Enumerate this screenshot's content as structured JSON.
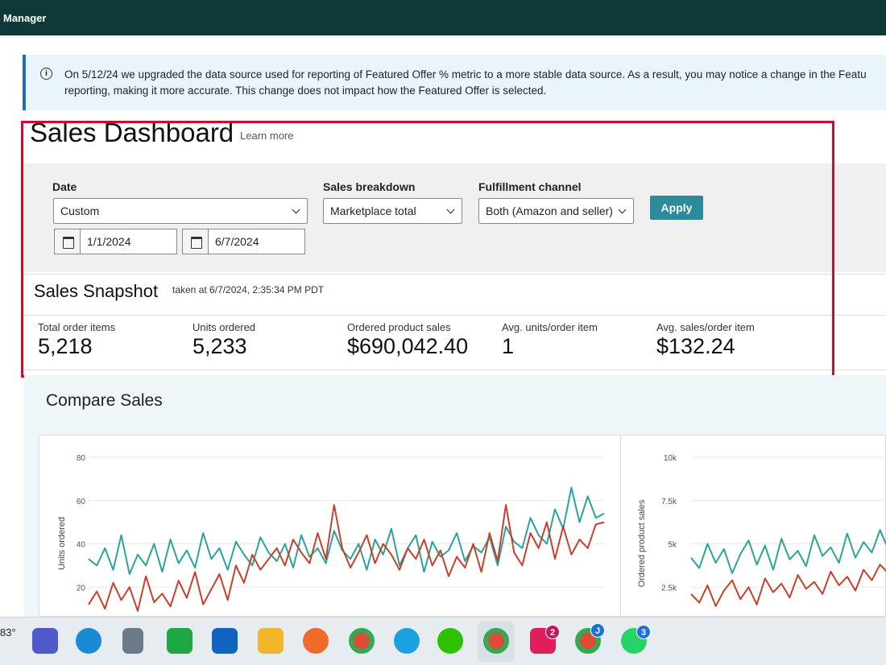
{
  "top_bar": {
    "title": "Manager"
  },
  "notice": {
    "line1": "On 5/12/24 we upgraded the data source used for reporting of Featured Offer % metric to a more stable data source. As a result, you may notice a change in the Featu",
    "line2": "reporting, making it more accurate. This change does not impact how the Featured Offer is selected."
  },
  "dashboard": {
    "title": "Sales Dashboard",
    "learn_more": "Learn more"
  },
  "filters": {
    "date": {
      "label": "Date",
      "value": "Custom",
      "start": "1/1/2024",
      "end": "6/7/2024"
    },
    "sales_breakdown": {
      "label": "Sales breakdown",
      "value": "Marketplace total"
    },
    "fulfillment": {
      "label": "Fulfillment channel",
      "value": "Both (Amazon and seller)"
    },
    "apply": "Apply"
  },
  "snapshot": {
    "title": "Sales Snapshot",
    "taken": "taken at 6/7/2024, 2:35:34 PM PDT",
    "metrics": [
      {
        "label": "Total order items",
        "value": "5,218"
      },
      {
        "label": "Units ordered",
        "value": "5,233"
      },
      {
        "label": "Ordered product sales",
        "value": "$690,042.40"
      },
      {
        "label": "Avg. units/order item",
        "value": "1"
      },
      {
        "label": "Avg. sales/order item",
        "value": "$132.24"
      }
    ]
  },
  "compare": {
    "title": "Compare Sales",
    "charts": [
      {
        "type": "line",
        "y_label": "Units ordered",
        "ylim": [
          0,
          80
        ],
        "yticks": [
          20,
          40,
          60,
          80
        ],
        "grid": true,
        "series": [
          {
            "color": "#2aa39c",
            "values": [
              33,
              30,
              38,
              28,
              44,
              26,
              35,
              30,
              40,
              27,
              42,
              31,
              37,
              29,
              45,
              33,
              38,
              28,
              41,
              35,
              30,
              43,
              36,
              32,
              40,
              29,
              44,
              34,
              38,
              31,
              46,
              37,
              33,
              40,
              28,
              42,
              35,
              47,
              30,
              38,
              44,
              27,
              41,
              34,
              37,
              45,
              32,
              39,
              36,
              43,
              30,
              48,
              41,
              38,
              52,
              44,
              40,
              56,
              47,
              66,
              50,
              62,
              52,
              54
            ]
          },
          {
            "color": "#c9402a",
            "values": [
              12,
              18,
              10,
              22,
              14,
              20,
              9,
              25,
              13,
              17,
              11,
              23,
              15,
              27,
              12,
              19,
              26,
              14,
              30,
              22,
              35,
              28,
              33,
              38,
              30,
              42,
              36,
              31,
              45,
              33,
              58,
              38,
              29,
              36,
              44,
              31,
              40,
              35,
              28,
              38,
              33,
              42,
              30,
              37,
              25,
              34,
              29,
              40,
              27,
              45,
              32,
              58,
              36,
              30,
              45,
              38,
              50,
              33,
              48,
              35,
              42,
              38,
              49,
              50
            ]
          }
        ]
      },
      {
        "type": "line",
        "y_label": "Ordered product sales",
        "ylim": [
          0,
          10000
        ],
        "yticks": [
          {
            "value": 2500,
            "label": "2.5k"
          },
          {
            "value": 5000,
            "label": "5k"
          },
          {
            "value": 7500,
            "label": "7.5k"
          },
          {
            "value": 10000,
            "label": "10k"
          }
        ],
        "grid": true,
        "series": [
          {
            "color": "#2aa39c",
            "values": [
              4200,
              3600,
              5000,
              3900,
              4700,
              3300,
              4400,
              5200,
              3800,
              4900,
              3500,
              5300,
              4100,
              4600,
              3700,
              5500,
              4300,
              4800,
              3900,
              5600,
              4200,
              5100,
              4500,
              5800,
              4700
            ]
          },
          {
            "color": "#c9402a",
            "values": [
              2100,
              1600,
              2600,
              1400,
              2300,
              2900,
              1800,
              2500,
              1500,
              3000,
              2200,
              2700,
              1900,
              3200,
              2400,
              2800,
              2100,
              3400,
              2600,
              3100,
              2300,
              3500,
              2900,
              3800,
              3300
            ]
          }
        ]
      }
    ]
  },
  "taskbar": {
    "weather": "83°",
    "badges": [
      "2",
      "J",
      "3"
    ]
  }
}
